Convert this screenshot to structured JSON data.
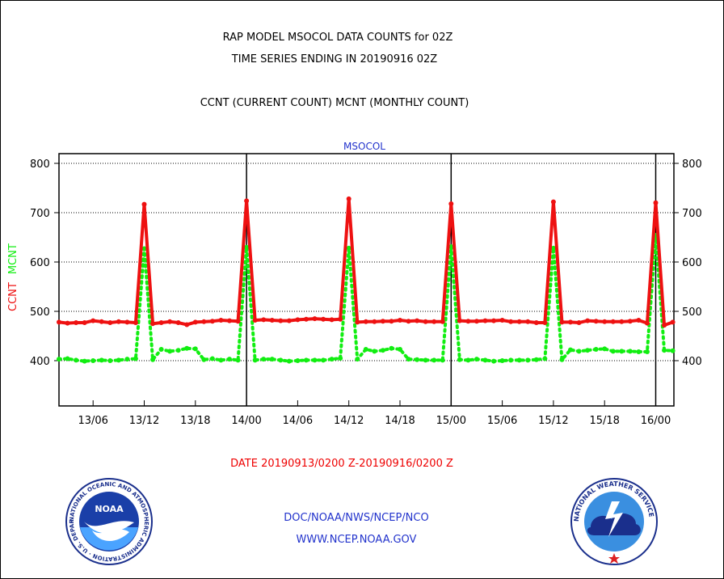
{
  "header": {
    "title_line1": "RAP MODEL MSOCOL DATA COUNTS for 02Z",
    "title_line2": "TIME SERIES ENDING IN 20190916 02Z",
    "subtitle": "CCNT (CURRENT COUNT) MCNT (MONTHLY COUNT)"
  },
  "footer": {
    "date_range": "DATE 20190913/0200 Z-20190916/0200 Z",
    "agency": "DOC/NOAA/NWS/NCEP/NCO",
    "website": "WWW.NCEP.NOAA.GOV"
  },
  "logos": {
    "noaa_center": "NOAA",
    "noaa_ring": "NATIONAL OCEANIC AND ATMOSPHERIC ADMINISTRATION · U.S. DEPARTMENT OF COMMERCE ·",
    "nws_ring": "NATIONAL WEATHER SERVICE"
  },
  "colors": {
    "ccnt": "#ee1111",
    "mcnt": "#11ee11",
    "plot_label": "#2233cc",
    "axis": "#000000"
  },
  "chart_data": {
    "type": "line",
    "plot_label": "MSOCOL",
    "x_unit": "hours after 20190913/0200 Z (one point per hour)",
    "x_tick_labels": [
      "13/06",
      "13/12",
      "13/18",
      "14/00",
      "14/06",
      "14/12",
      "14/18",
      "15/00",
      "15/06",
      "15/12",
      "15/18",
      "16/00"
    ],
    "x_tick_hours": [
      4,
      10,
      16,
      22,
      28,
      34,
      40,
      46,
      52,
      58,
      64,
      70
    ],
    "day_boundaries_hours": [
      22,
      46,
      70
    ],
    "xlim": [
      0,
      72
    ],
    "ylim": [
      310,
      820
    ],
    "y_ticks": [
      400,
      500,
      600,
      700,
      800
    ],
    "ylabel_left_red": "CCNT",
    "ylabel_left_green": "MCNT",
    "grid": "horizontal dotted",
    "legend": "none (colors keyed by y-axis label)",
    "series": [
      {
        "name": "CCNT",
        "color": "#ee1111",
        "style": "solid",
        "values": [
          478,
          476,
          477,
          477,
          481,
          479,
          477,
          479,
          478,
          477,
          717,
          475,
          477,
          479,
          477,
          473,
          478,
          479,
          480,
          482,
          481,
          480,
          724,
          482,
          483,
          482,
          481,
          481,
          483,
          484,
          485,
          484,
          483,
          484,
          728,
          478,
          479,
          479,
          480,
          480,
          482,
          480,
          481,
          479,
          479,
          479,
          718,
          481,
          480,
          480,
          481,
          481,
          482,
          479,
          479,
          479,
          477,
          477,
          722,
          478,
          478,
          477,
          481,
          480,
          479,
          479,
          479,
          480,
          482,
          476,
          720,
          472,
          478
        ]
      },
      {
        "name": "MCNT",
        "color": "#11ee11",
        "style": "dotted",
        "values": [
          403,
          404,
          401,
          399,
          400,
          401,
          400,
          401,
          403,
          404,
          627,
          402,
          423,
          419,
          421,
          425,
          424,
          402,
          404,
          401,
          403,
          401,
          630,
          401,
          403,
          403,
          401,
          399,
          400,
          401,
          401,
          401,
          403,
          405,
          628,
          403,
          423,
          419,
          421,
          425,
          423,
          403,
          402,
          401,
          401,
          401,
          631,
          402,
          401,
          403,
          401,
          399,
          400,
          401,
          401,
          401,
          402,
          404,
          628,
          402,
          422,
          419,
          421,
          423,
          424,
          419,
          419,
          419,
          418,
          418,
          654,
          421,
          420
        ]
      }
    ]
  }
}
